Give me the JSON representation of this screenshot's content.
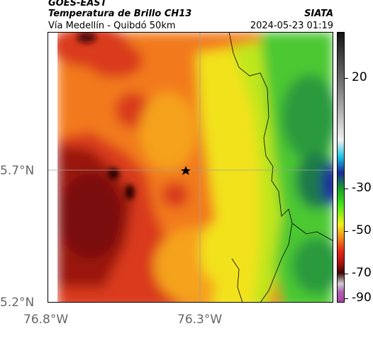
{
  "header": {
    "satellite": "GOES-EAST",
    "product": "Temperatura de Brillo CH13",
    "route": "Vía Medellín - Quibdó 50km",
    "org": "SIATA",
    "datetime": "2024-05-23 01:19"
  },
  "axes": {
    "lat_labels": [
      "5.7°N",
      "5.2°N"
    ],
    "lon_labels": [
      "76.8°W",
      "76.3°W"
    ]
  },
  "colorbar": {
    "ticks": [
      "20",
      "-30",
      "-50",
      "-70",
      "-90"
    ],
    "colors": [
      "#222222",
      "#9a9a9a",
      "#e8e8e8",
      "#1ec8e6",
      "#1a2a9a",
      "#1aa02a",
      "#46e61a",
      "#f0f01a",
      "#f08c1a",
      "#e6281a",
      "#a01010",
      "#3a0808",
      "#d0d0d0",
      "#a040a0"
    ]
  },
  "map": {
    "marker": "star",
    "colors": {
      "deep_red": "#9a1410",
      "red": "#d93a1a",
      "orange": "#f27a1a",
      "light_orange": "#f5a21e",
      "yellow": "#f2e21c",
      "yellow_green": "#bfe61e",
      "green": "#4cc832",
      "dark_green": "#2a9a3c",
      "dark_core": "#2a0606",
      "border": "#000000",
      "grid": "#a0a0a0"
    }
  }
}
